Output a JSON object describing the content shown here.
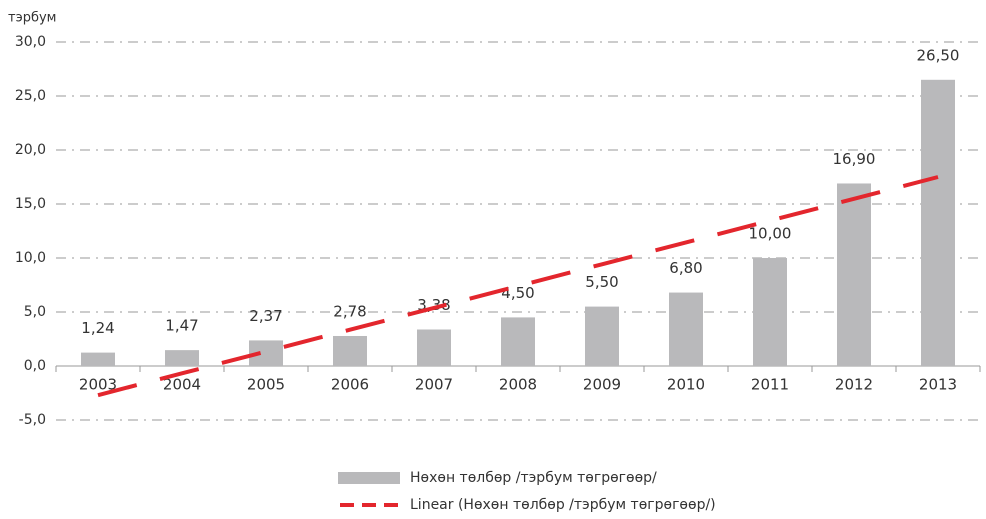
{
  "chart_data": {
    "type": "bar",
    "y_label": "тэрбум",
    "categories": [
      "2003",
      "2004",
      "2005",
      "2006",
      "2007",
      "2008",
      "2009",
      "2010",
      "2011",
      "2012",
      "2013"
    ],
    "series": [
      {
        "name": "Нөхөн төлбөр /тэрбум төгрөгөөр/",
        "color": "#b9b9bb",
        "type": "bar",
        "values": [
          1.24,
          1.47,
          2.37,
          2.78,
          3.38,
          4.5,
          5.5,
          6.8,
          10.0,
          16.9,
          26.5
        ],
        "value_labels": [
          "1,24",
          "1,47",
          "2,37",
          "2,78",
          "3,38",
          "4,50",
          "5,50",
          "6,80",
          "10,00",
          "16,90",
          "26,50"
        ]
      },
      {
        "name": "Linear (Нөхөн төлбөр /тэрбум төгрөгөөр/)",
        "color": "#e3262d",
        "type": "line",
        "dashed": true,
        "values": [
          -2.7,
          -0.68,
          1.34,
          3.36,
          5.38,
          7.4,
          9.42,
          11.44,
          13.46,
          15.48,
          17.5
        ]
      }
    ],
    "ylim": [
      -5,
      30
    ],
    "yticks": [
      {
        "value": -5,
        "label": "-5,0"
      },
      {
        "value": 0,
        "label": "0,0"
      },
      {
        "value": 5,
        "label": "5,0"
      },
      {
        "value": 10,
        "label": "10,0"
      },
      {
        "value": 15,
        "label": "15,0"
      },
      {
        "value": 20,
        "label": "20,0"
      },
      {
        "value": 25,
        "label": "25,0"
      },
      {
        "value": 30,
        "label": "30,0"
      }
    ],
    "grid": true
  }
}
